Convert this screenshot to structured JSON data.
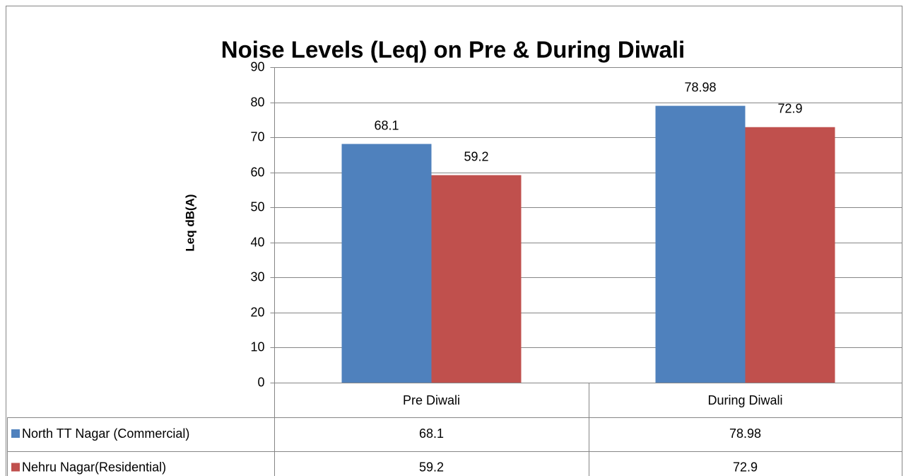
{
  "chart_data": {
    "type": "bar",
    "title": "Noise Levels (Leq) on Pre & During Diwali",
    "y_label": "Leq dB(A)",
    "categories": [
      "Pre Diwali",
      "During Diwali"
    ],
    "series": [
      {
        "name": "North TT Nagar (Commercial)",
        "color": "#4f81bd",
        "values": [
          68.1,
          78.98
        ]
      },
      {
        "name": "Nehru Nagar(Residential)",
        "color": "#c0504d",
        "values": [
          59.2,
          72.9
        ]
      }
    ],
    "ylim": [
      0,
      90
    ],
    "yticks": [
      0,
      10,
      20,
      30,
      40,
      50,
      60,
      70,
      80,
      90
    ],
    "grid": true,
    "data_table": true
  }
}
